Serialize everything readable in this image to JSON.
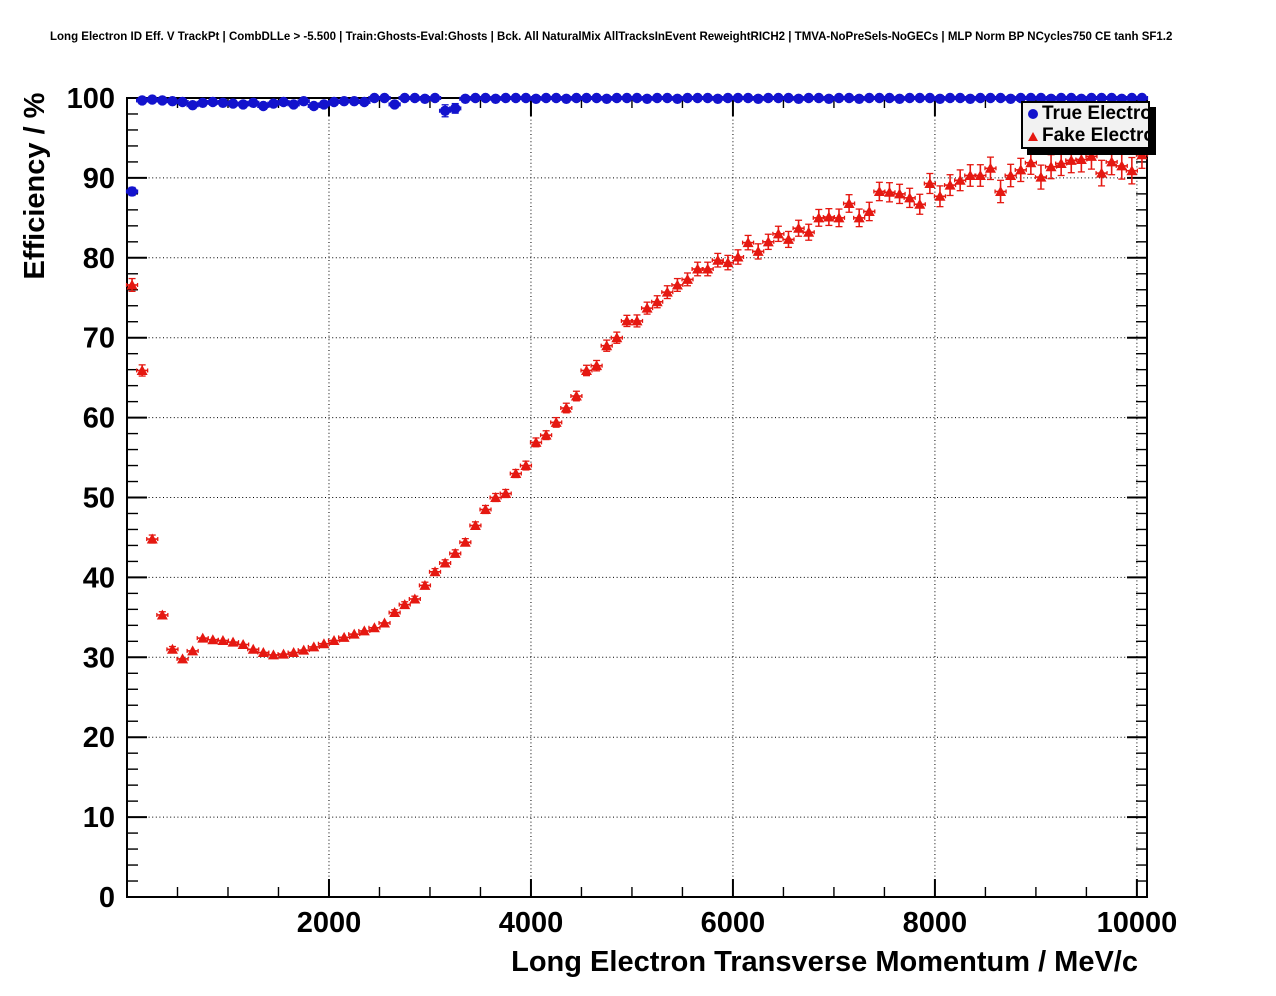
{
  "title": "Long Electron ID Eff. V TrackPt | CombDLLe > -5.500 | Train:Ghosts-Eval:Ghosts | Bck. All NaturalMix AllTracksInEvent ReweightRICH2 | TMVA-NoPreSels-NoGECs | MLP Norm BP NCycles750 CE tanh SF1.2",
  "colors": {
    "true_electron": "#1313cd",
    "fake_electron": "#e51811",
    "axis": "#000000",
    "grid": "#000000",
    "legend_fill": "#f2f2f2",
    "background": "#ffffff"
  },
  "legend": {
    "position": "top-right"
  },
  "chart_data": {
    "type": "scatter",
    "title": "Long Electron ID Eff. V TrackPt | CombDLLe > -5.500 | Train:Ghosts-Eval:Ghosts | Bck. All NaturalMix AllTracksInEvent ReweightRICH2 | TMVA-NoPreSels-NoGECs | MLP Norm BP NCycles750 CE tanh SF1.2",
    "xlabel": "Long Electron Transverse Momentum / MeV/c",
    "ylabel": "Efficiency / %",
    "xlim": [
      0,
      10100
    ],
    "ylim": [
      0,
      100
    ],
    "x_major_ticks": [
      2000,
      4000,
      6000,
      8000,
      10000
    ],
    "x_minor_step": 500,
    "y_major_ticks": [
      0,
      10,
      20,
      30,
      40,
      50,
      60,
      70,
      80,
      90,
      100
    ],
    "y_minor_step": 2,
    "grid": "dotted-at-major-ticks",
    "legend_position": "top-right",
    "x": [
      50,
      150,
      250,
      350,
      450,
      550,
      650,
      750,
      850,
      950,
      1050,
      1150,
      1250,
      1350,
      1450,
      1550,
      1650,
      1750,
      1850,
      1950,
      2050,
      2150,
      2250,
      2350,
      2450,
      2550,
      2650,
      2750,
      2850,
      2950,
      3050,
      3150,
      3250,
      3350,
      3450,
      3550,
      3650,
      3750,
      3850,
      3950,
      4050,
      4150,
      4250,
      4350,
      4450,
      4550,
      4650,
      4750,
      4850,
      4950,
      5050,
      5150,
      5250,
      5350,
      5450,
      5550,
      5650,
      5750,
      5850,
      5950,
      6050,
      6150,
      6250,
      6350,
      6450,
      6550,
      6650,
      6750,
      6850,
      6950,
      7050,
      7150,
      7250,
      7350,
      7450,
      7550,
      7650,
      7750,
      7850,
      7950,
      8050,
      8150,
      8250,
      8350,
      8450,
      8550,
      8650,
      8750,
      8850,
      8950,
      9050,
      9150,
      9250,
      9350,
      9450,
      9550,
      9650,
      9750,
      9850,
      9950,
      10050
    ],
    "series": [
      {
        "name": "True Electron",
        "marker": "circle",
        "color": "#1313cd",
        "y": [
          88.3,
          99.7,
          99.8,
          99.7,
          99.6,
          99.5,
          99.1,
          99.4,
          99.5,
          99.4,
          99.3,
          99.2,
          99.4,
          99.0,
          99.3,
          99.5,
          99.2,
          99.6,
          99.0,
          99.2,
          99.5,
          99.6,
          99.6,
          99.5,
          100,
          100,
          99.2,
          100,
          100,
          99.9,
          100,
          98.4,
          98.7,
          99.9,
          100,
          100,
          99.9,
          100,
          100,
          100,
          99.9,
          100,
          100,
          99.9,
          100,
          100,
          100,
          99.9,
          100,
          100,
          100,
          99.9,
          100,
          100,
          99.9,
          100,
          100,
          100,
          99.9,
          100,
          100,
          100,
          99.9,
          100,
          100,
          100,
          99.9,
          100,
          100,
          99.9,
          100,
          100,
          99.9,
          100,
          100,
          100,
          99.9,
          100,
          100,
          100,
          99.9,
          100,
          100,
          99.9,
          100,
          100,
          100,
          99.9,
          100,
          100,
          100,
          99.9,
          100,
          100,
          99.9,
          100,
          100,
          100,
          99.9,
          100,
          100
        ],
        "yerr_default": 0.15,
        "yerr_overrides": {
          "0": 0.5,
          "6": 0.3,
          "13": 0.3,
          "18": 0.35,
          "26": 0.3,
          "31": 0.75,
          "32": 0.6
        }
      },
      {
        "name": "Fake Electron",
        "marker": "triangle",
        "color": "#e51811",
        "y": [
          76.6,
          65.9,
          44.8,
          35.3,
          31.0,
          29.8,
          30.8,
          32.4,
          32.2,
          32.1,
          31.9,
          31.6,
          31.0,
          30.6,
          30.3,
          30.4,
          30.6,
          30.9,
          31.3,
          31.7,
          32.1,
          32.5,
          32.9,
          33.3,
          33.7,
          34.3,
          35.6,
          36.6,
          37.3,
          39.0,
          40.7,
          41.8,
          43.0,
          44.4,
          46.5,
          48.5,
          50.0,
          50.5,
          53.0,
          54.0,
          56.9,
          57.8,
          59.4,
          61.2,
          62.7,
          65.9,
          66.5,
          69.0,
          70.0,
          72.1,
          72.1,
          73.7,
          74.5,
          75.7,
          76.6,
          77.3,
          78.6,
          78.6,
          79.7,
          79.4,
          80.1,
          81.9,
          80.8,
          82.0,
          83.0,
          82.3,
          83.7,
          83.2,
          85.0,
          85.1,
          85.0,
          86.8,
          85.0,
          85.8,
          88.3,
          88.2,
          88.0,
          87.5,
          86.7,
          89.3,
          87.7,
          89.1,
          89.7,
          90.3,
          90.3,
          91.2,
          88.3,
          90.3,
          91.0,
          91.9,
          90.1,
          91.4,
          91.8,
          92.2,
          92.3,
          92.7,
          90.6,
          92.0,
          91.5,
          90.9,
          92.9
        ],
        "yerr": [
          0.8,
          0.7,
          0.5,
          0.4,
          0.35,
          0.3,
          0.3,
          0.3,
          0.25,
          0.25,
          0.25,
          0.25,
          0.25,
          0.25,
          0.25,
          0.25,
          0.25,
          0.25,
          0.25,
          0.25,
          0.3,
          0.3,
          0.3,
          0.3,
          0.3,
          0.3,
          0.35,
          0.35,
          0.35,
          0.4,
          0.4,
          0.4,
          0.45,
          0.45,
          0.45,
          0.5,
          0.5,
          0.5,
          0.5,
          0.55,
          0.55,
          0.55,
          0.6,
          0.6,
          0.6,
          0.65,
          0.65,
          0.7,
          0.7,
          0.7,
          0.75,
          0.75,
          0.75,
          0.8,
          0.8,
          0.8,
          0.85,
          0.85,
          0.85,
          0.9,
          0.9,
          0.9,
          0.95,
          0.95,
          0.95,
          1.0,
          1.0,
          1.0,
          1.05,
          1.05,
          1.1,
          1.1,
          1.1,
          1.15,
          1.15,
          1.2,
          1.2,
          1.2,
          1.25,
          1.25,
          1.3,
          1.3,
          1.3,
          1.35,
          1.35,
          1.4,
          1.4,
          1.4,
          1.45,
          1.45,
          1.5,
          1.5,
          1.5,
          1.55,
          1.55,
          1.6,
          1.6,
          1.6,
          1.65,
          1.65,
          1.7
        ]
      }
    ]
  }
}
